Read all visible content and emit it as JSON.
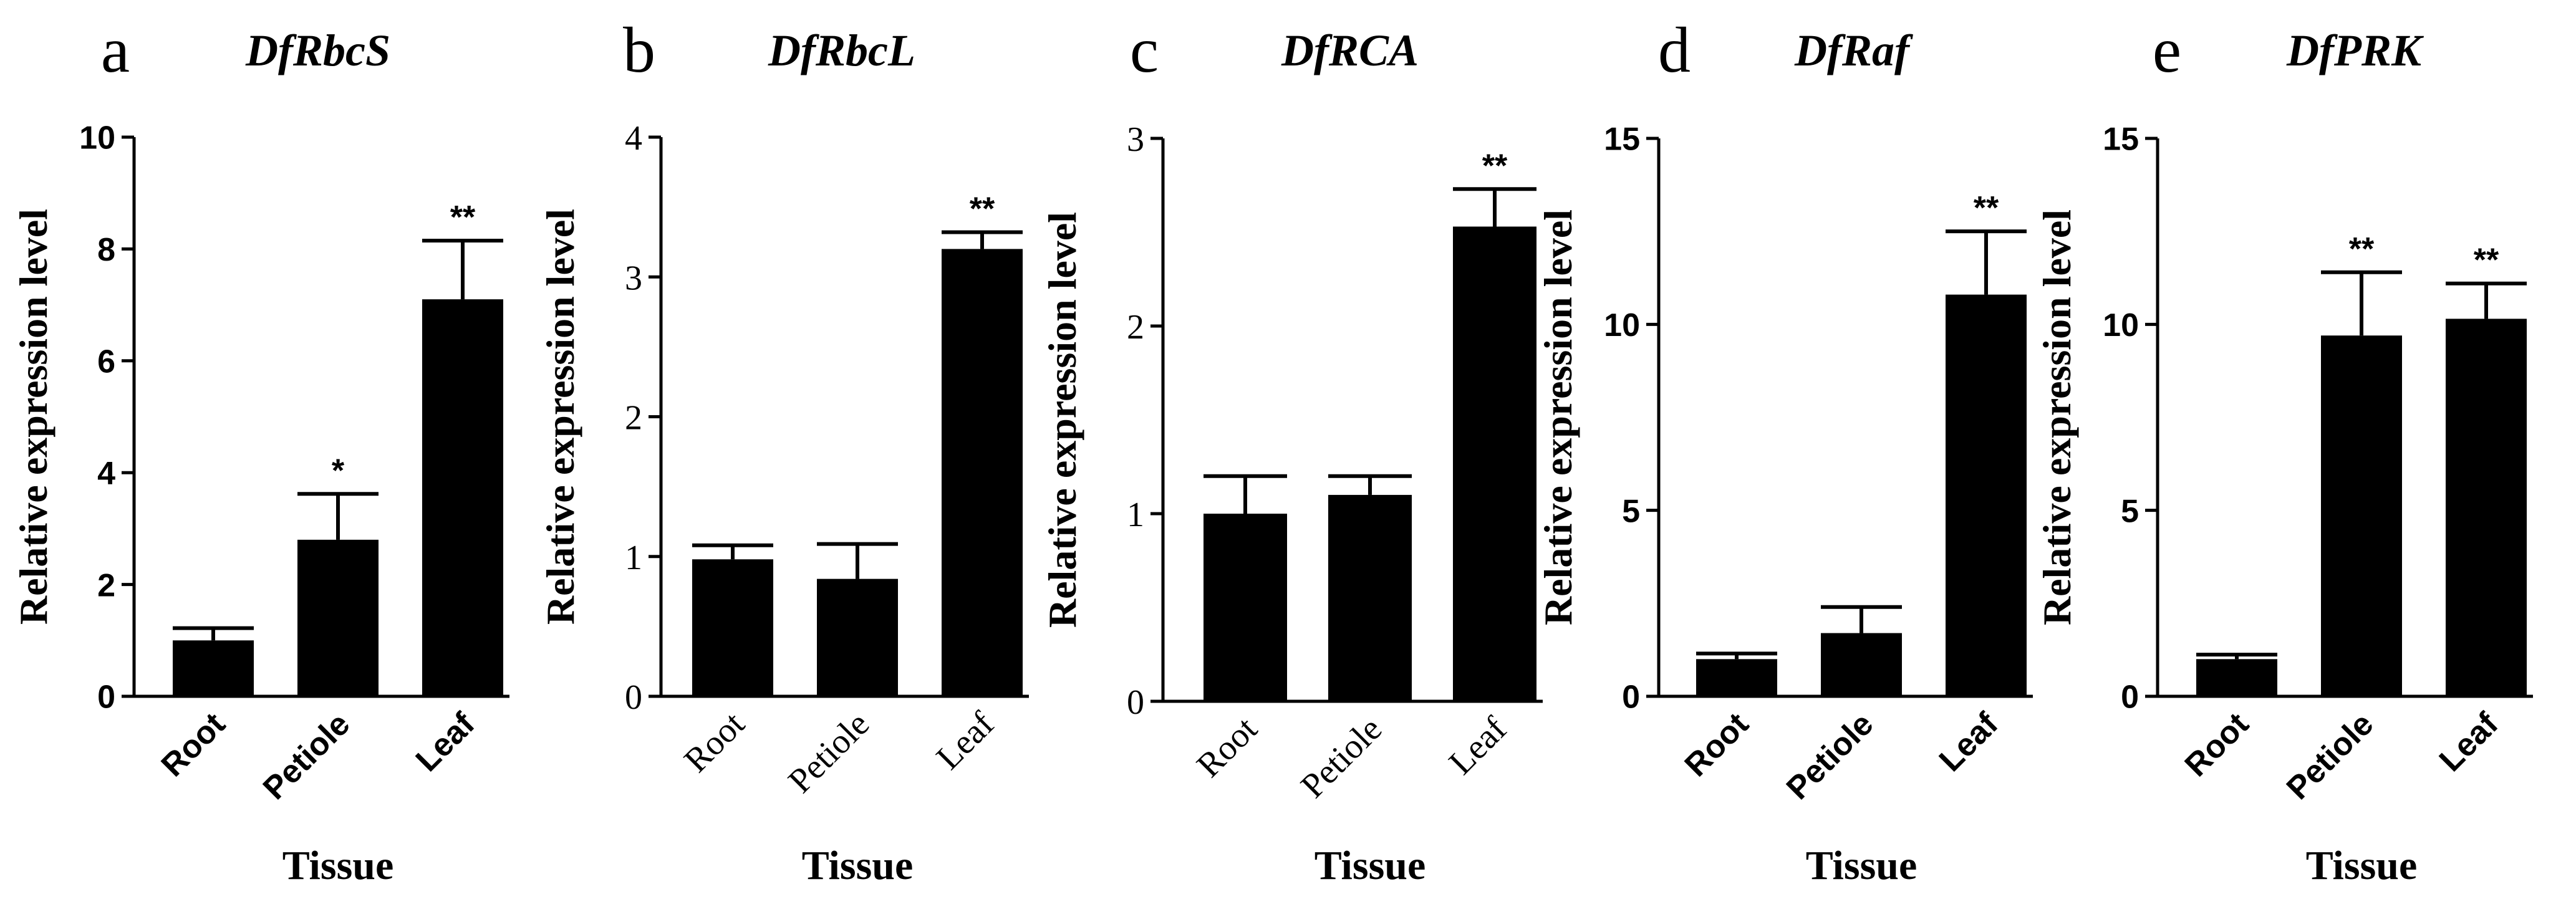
{
  "figure": {
    "background": "#ffffff",
    "bar_color": "#000000"
  },
  "chart_data": [
    {
      "type": "bar",
      "panel_label": "a",
      "title": "DfRbcS",
      "categories": [
        "Root",
        "Petiole",
        "Leaf"
      ],
      "values": [
        1.0,
        2.8,
        7.1
      ],
      "errors": [
        0.22,
        0.82,
        1.05
      ],
      "significance": [
        "",
        "*",
        "**"
      ],
      "xlabel": "Tissue",
      "ylabel": "Relative expression level",
      "ylim": [
        0,
        10
      ],
      "yticks": [
        0,
        2,
        4,
        6,
        8,
        10
      ],
      "tick_style": "sans"
    },
    {
      "type": "bar",
      "panel_label": "b",
      "title": "DfRbcL",
      "categories": [
        "Root",
        "Petiole",
        "Leaf"
      ],
      "values": [
        0.98,
        0.84,
        3.2
      ],
      "errors": [
        0.1,
        0.25,
        0.12
      ],
      "significance": [
        "",
        "",
        "**"
      ],
      "xlabel": "Tissue",
      "ylabel": "Relative expression level",
      "ylim": [
        0,
        4
      ],
      "yticks": [
        0,
        1,
        2,
        3,
        4
      ],
      "tick_style": "serif"
    },
    {
      "type": "bar",
      "panel_label": "c",
      "title": "DfRCA",
      "categories": [
        "Root",
        "Petiole",
        "Leaf"
      ],
      "values": [
        1.0,
        1.1,
        2.53
      ],
      "errors": [
        0.2,
        0.1,
        0.2
      ],
      "significance": [
        "",
        "",
        "**"
      ],
      "xlabel": "Tissue",
      "ylabel": "Relative expression level",
      "ylim": [
        0,
        3
      ],
      "yticks": [
        0,
        1,
        2,
        3
      ],
      "tick_style": "serif"
    },
    {
      "type": "bar",
      "panel_label": "d",
      "title": "DfRaf",
      "categories": [
        "Root",
        "Petiole",
        "Leaf"
      ],
      "values": [
        1.0,
        1.7,
        10.8
      ],
      "errors": [
        0.15,
        0.7,
        1.7
      ],
      "significance": [
        "",
        "",
        "**"
      ],
      "xlabel": "Tissue",
      "ylabel": "Relative expression level",
      "ylim": [
        0,
        15
      ],
      "yticks": [
        0,
        5,
        10,
        15
      ],
      "tick_style": "sans"
    },
    {
      "type": "bar",
      "panel_label": "e",
      "title": "DfPRK",
      "categories": [
        "Root",
        "Petiole",
        "Leaf"
      ],
      "values": [
        1.0,
        9.7,
        10.15
      ],
      "errors": [
        0.12,
        1.7,
        0.95
      ],
      "significance": [
        "",
        "**",
        "**"
      ],
      "xlabel": "Tissue",
      "ylabel": "Relative expression level",
      "ylim": [
        0,
        15
      ],
      "yticks": [
        0,
        5,
        10,
        15
      ],
      "tick_style": "sans"
    }
  ]
}
